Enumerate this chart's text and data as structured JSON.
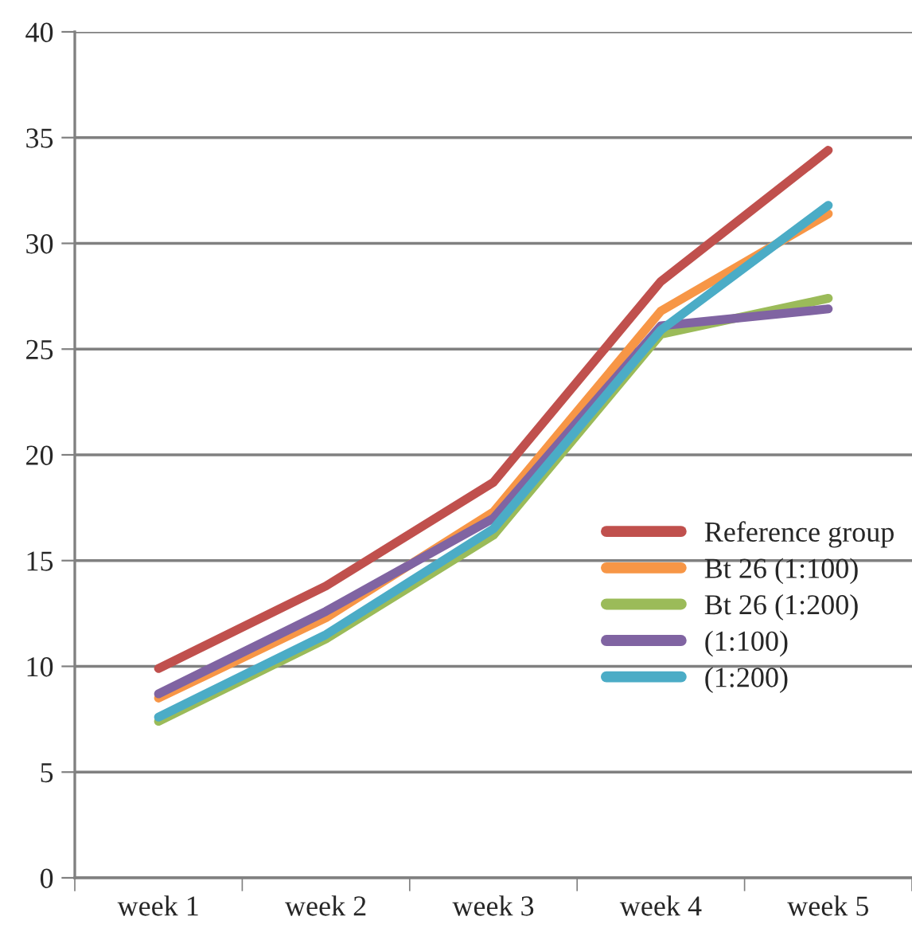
{
  "chart_data": {
    "type": "line",
    "categories": [
      "week 1",
      "week 2",
      "week 3",
      "week 4",
      "week 5"
    ],
    "series": [
      {
        "name": "Reference group",
        "color": "#c0504d",
        "values": [
          9.9,
          13.8,
          18.7,
          28.2,
          34.4
        ]
      },
      {
        "name": "Bt 26 (1:100)",
        "color": "#f79646",
        "values": [
          8.5,
          12.3,
          17.3,
          26.8,
          31.4
        ]
      },
      {
        "name": "Bt 26 (1:200)",
        "color": "#9bbb59",
        "values": [
          7.4,
          11.3,
          16.2,
          25.7,
          27.4
        ]
      },
      {
        "name": "(1:100)",
        "color": "#8064a2",
        "values": [
          8.7,
          12.6,
          17.0,
          26.1,
          26.9
        ]
      },
      {
        "name": "(1:200)",
        "color": "#4bacc6",
        "values": [
          7.6,
          11.5,
          16.5,
          25.9,
          31.8
        ]
      }
    ],
    "ylim": [
      0,
      40
    ],
    "yticks": [
      0,
      5,
      10,
      15,
      20,
      25,
      30,
      35,
      40
    ],
    "grid": "y",
    "legend": "right",
    "marker": "none",
    "line_style": "solid"
  }
}
